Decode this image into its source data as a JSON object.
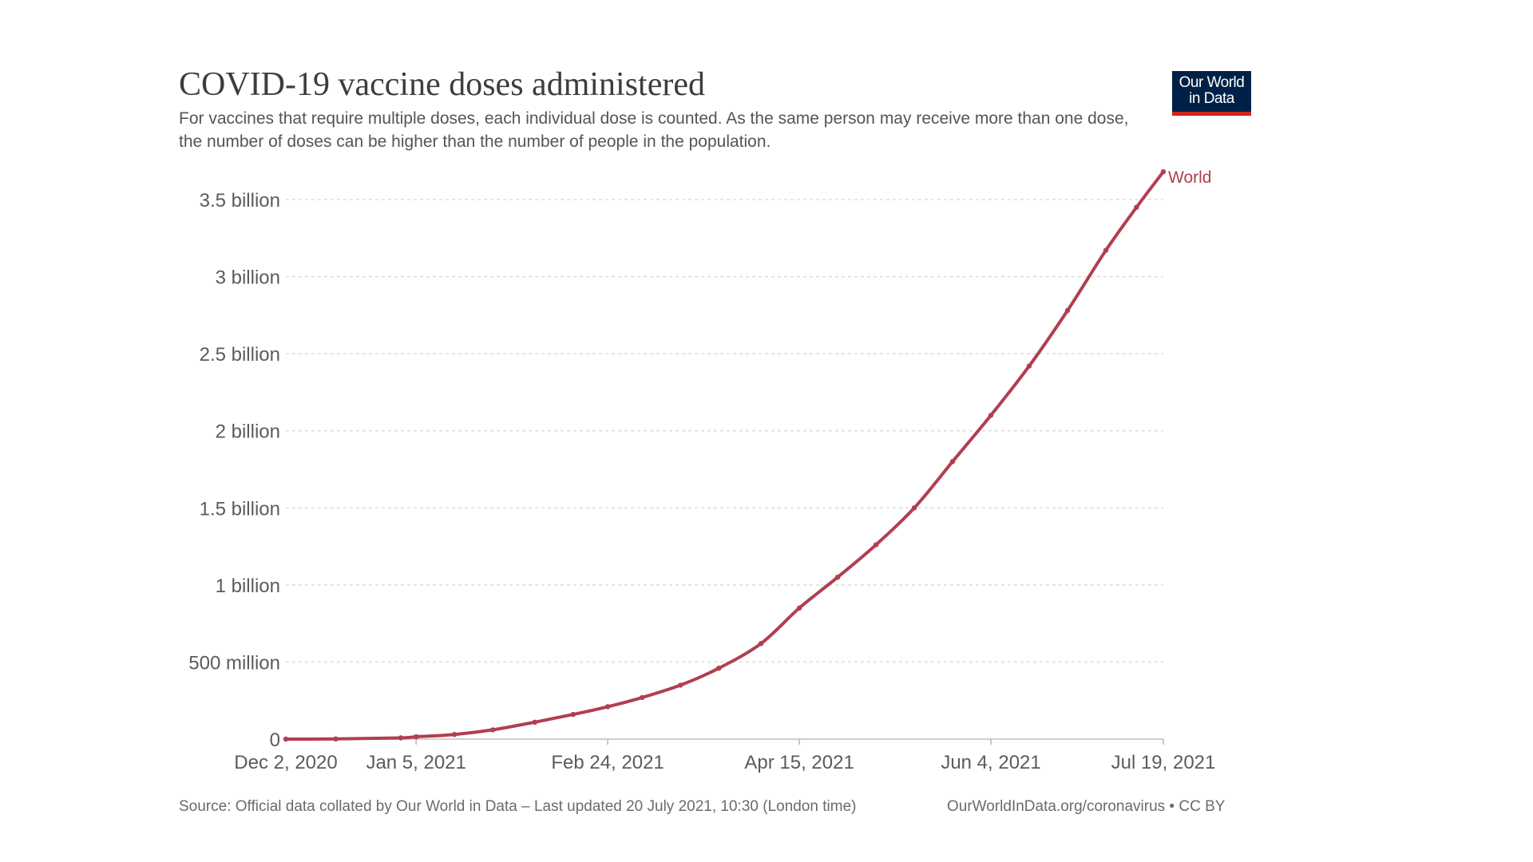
{
  "header": {
    "title": "COVID-19 vaccine doses administered",
    "subtitle": "For vaccines that require multiple doses, each individual dose is counted. As the same person may receive more than one dose, the number of doses can be higher than the number of people in the population."
  },
  "logo": {
    "line1": "Our World",
    "line2": "in Data",
    "bg_color": "#002147",
    "accent_color": "#ce261e"
  },
  "footer": {
    "source": "Source: Official data collated by Our World in Data – Last updated 20 July 2021, 10:30 (London time)",
    "license": "OurWorldInData.org/coronavirus • CC BY"
  },
  "chart_data": {
    "type": "line",
    "title": "COVID-19 vaccine doses administered",
    "xlabel": "",
    "ylabel": "",
    "grid": true,
    "ylim": [
      0,
      3500000000
    ],
    "y_ticks": [
      {
        "value": 0,
        "label": "0"
      },
      {
        "value": 500000000,
        "label": "500 million"
      },
      {
        "value": 1000000000,
        "label": "1 billion"
      },
      {
        "value": 1500000000,
        "label": "1.5 billion"
      },
      {
        "value": 2000000000,
        "label": "2 billion"
      },
      {
        "value": 2500000000,
        "label": "2.5 billion"
      },
      {
        "value": 3000000000,
        "label": "3 billion"
      },
      {
        "value": 3500000000,
        "label": "3.5 billion"
      }
    ],
    "x_ticks": [
      {
        "value": "2020-12-02",
        "label": "Dec 2, 2020"
      },
      {
        "value": "2021-01-05",
        "label": "Jan 5, 2021"
      },
      {
        "value": "2021-02-24",
        "label": "Feb 24, 2021"
      },
      {
        "value": "2021-04-15",
        "label": "Apr 15, 2021"
      },
      {
        "value": "2021-06-04",
        "label": "Jun 4, 2021"
      },
      {
        "value": "2021-07-19",
        "label": "Jul 19, 2021"
      }
    ],
    "xlim": [
      "2020-12-02",
      "2021-07-19"
    ],
    "series": [
      {
        "name": "World",
        "color": "#b13e51",
        "points": [
          {
            "x": "2020-12-02",
            "y": 0
          },
          {
            "x": "2020-12-15",
            "y": 1000000
          },
          {
            "x": "2021-01-01",
            "y": 8000000
          },
          {
            "x": "2021-01-05",
            "y": 15000000
          },
          {
            "x": "2021-01-15",
            "y": 30000000
          },
          {
            "x": "2021-01-25",
            "y": 60000000
          },
          {
            "x": "2021-02-05",
            "y": 110000000
          },
          {
            "x": "2021-02-15",
            "y": 160000000
          },
          {
            "x": "2021-02-24",
            "y": 210000000
          },
          {
            "x": "2021-03-05",
            "y": 270000000
          },
          {
            "x": "2021-03-15",
            "y": 350000000
          },
          {
            "x": "2021-03-25",
            "y": 460000000
          },
          {
            "x": "2021-04-05",
            "y": 620000000
          },
          {
            "x": "2021-04-15",
            "y": 850000000
          },
          {
            "x": "2021-04-25",
            "y": 1050000000
          },
          {
            "x": "2021-05-05",
            "y": 1260000000
          },
          {
            "x": "2021-05-15",
            "y": 1500000000
          },
          {
            "x": "2021-05-25",
            "y": 1800000000
          },
          {
            "x": "2021-06-04",
            "y": 2100000000
          },
          {
            "x": "2021-06-14",
            "y": 2420000000
          },
          {
            "x": "2021-06-24",
            "y": 2780000000
          },
          {
            "x": "2021-07-04",
            "y": 3170000000
          },
          {
            "x": "2021-07-12",
            "y": 3450000000
          },
          {
            "x": "2021-07-19",
            "y": 3680000000
          }
        ]
      }
    ]
  }
}
